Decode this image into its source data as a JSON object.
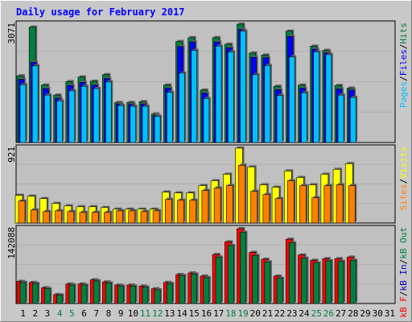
{
  "title": "Daily usage for February 2017",
  "colors": {
    "background": "#c8c8c8",
    "panel": "#c0c0c0",
    "grid": "#b0b0b0",
    "title": "#0000ff",
    "weekday_label": "#000000",
    "weekend_label": "#008040",
    "hits": "#008040",
    "files": "#0000ff",
    "pages": "#00c0ff",
    "visits": "#ffff00",
    "sites": "#ff8000",
    "kb_in": "#0000c0",
    "kb_out": "#008040",
    "kb_f": "#ff0000",
    "shadow": "#606060"
  },
  "chart_data": [
    {
      "type": "bar",
      "name": "pages-files-hits",
      "y_max_label": "3071",
      "ylim": [
        0,
        3071
      ],
      "legend": [
        "Pages",
        "/",
        "Files",
        "/",
        "Hits"
      ],
      "legend_colors": [
        "#00c0ff",
        "#000000",
        "#0000ff",
        "#000000",
        "#008040"
      ],
      "categories": [
        "1",
        "2",
        "3",
        "4",
        "5",
        "6",
        "7",
        "8",
        "9",
        "10",
        "11",
        "12",
        "13",
        "14",
        "15",
        "16",
        "17",
        "18",
        "19",
        "20",
        "21",
        "22",
        "23",
        "24",
        "25",
        "26",
        "27",
        "28",
        "29",
        "30",
        "31"
      ],
      "series": [
        {
          "name": "Hits",
          "color": "#008040",
          "values": [
            1730,
            2995,
            1490,
            1230,
            1580,
            1700,
            1590,
            1760,
            1040,
            1040,
            1060,
            740,
            1490,
            2620,
            2720,
            1360,
            2720,
            2550,
            3071,
            2320,
            2270,
            1460,
            2890,
            1490,
            2500,
            2390,
            1480,
            1410,
            null,
            null,
            null
          ]
        },
        {
          "name": "Files",
          "color": "#0000ff",
          "values": [
            1640,
            2080,
            1400,
            1150,
            1480,
            1560,
            1490,
            1660,
            1000,
            990,
            1000,
            700,
            1410,
            2490,
            2610,
            1280,
            2610,
            2460,
            2940,
            2210,
            2200,
            1370,
            2750,
            1410,
            2420,
            2330,
            1390,
            1360,
            null,
            null,
            null
          ]
        },
        {
          "name": "Pages",
          "color": "#00c0ff",
          "values": [
            1500,
            1990,
            1230,
            1080,
            1340,
            1460,
            1400,
            1570,
            960,
            940,
            940,
            680,
            1300,
            1800,
            2390,
            1140,
            2500,
            2350,
            2890,
            1760,
            2000,
            1220,
            2220,
            1290,
            2350,
            2280,
            1230,
            1170,
            null,
            null,
            null
          ]
        }
      ]
    },
    {
      "type": "bar",
      "name": "visits-sites",
      "y_max_label": "921",
      "ylim": [
        0,
        921
      ],
      "legend": [
        "Sites",
        "/",
        "Visits"
      ],
      "legend_colors": [
        "#ff8000",
        "#000000",
        "#ffff00"
      ],
      "categories": [
        "1",
        "2",
        "3",
        "4",
        "5",
        "6",
        "7",
        "8",
        "9",
        "10",
        "11",
        "12",
        "13",
        "14",
        "15",
        "16",
        "17",
        "18",
        "19",
        "20",
        "21",
        "22",
        "23",
        "24",
        "25",
        "26",
        "27",
        "28",
        "29",
        "30",
        "31"
      ],
      "series": [
        {
          "name": "Visits",
          "color": "#ffff00",
          "values": [
            340,
            330,
            300,
            240,
            210,
            200,
            200,
            190,
            170,
            170,
            170,
            170,
            380,
            370,
            370,
            460,
            520,
            600,
            921,
            690,
            470,
            440,
            640,
            560,
            470,
            600,
            660,
            730,
            null,
            null,
            null
          ]
        },
        {
          "name": "Sites",
          "color": "#ff8000",
          "values": [
            270,
            160,
            140,
            150,
            140,
            130,
            130,
            130,
            150,
            150,
            140,
            150,
            290,
            280,
            280,
            400,
            430,
            460,
            710,
            390,
            350,
            300,
            520,
            460,
            310,
            460,
            470,
            460,
            null,
            null,
            null
          ]
        }
      ]
    },
    {
      "type": "bar",
      "name": "kbytes",
      "y_max_label": "142088",
      "ylim": [
        0,
        142088
      ],
      "legend": [
        "kB F",
        "/",
        "kB In",
        "/",
        "kB Out"
      ],
      "legend_colors": [
        "#ff0000",
        "#000000",
        "#0000c0",
        "#000000",
        "#008040"
      ],
      "categories": [
        "1",
        "2",
        "3",
        "4",
        "5",
        "6",
        "7",
        "8",
        "9",
        "10",
        "11",
        "12",
        "13",
        "14",
        "15",
        "16",
        "17",
        "18",
        "19",
        "20",
        "21",
        "22",
        "23",
        "24",
        "25",
        "26",
        "27",
        "28",
        "29",
        "30",
        "31"
      ],
      "series": [
        {
          "name": "kB F",
          "color": "#ff0000",
          "values": [
            42000,
            40000,
            30000,
            17000,
            37000,
            37000,
            45000,
            41000,
            35000,
            35000,
            33000,
            28000,
            40000,
            55000,
            58000,
            52000,
            93000,
            117000,
            142088,
            97000,
            84000,
            52000,
            122000,
            92000,
            82000,
            85000,
            85000,
            88000,
            null,
            null,
            null
          ]
        },
        {
          "name": "kB In",
          "color": "#0000c0",
          "values": [
            0,
            0,
            0,
            0,
            0,
            0,
            0,
            0,
            0,
            0,
            0,
            0,
            0,
            0,
            0,
            0,
            0,
            0,
            0,
            0,
            0,
            0,
            0,
            0,
            0,
            0,
            0,
            0,
            null,
            null,
            null
          ]
        },
        {
          "name": "kB Out",
          "color": "#008040",
          "values": [
            40000,
            38000,
            28000,
            16000,
            35000,
            35000,
            43000,
            39000,
            33000,
            33000,
            31000,
            26000,
            38000,
            53000,
            56000,
            49000,
            88000,
            110000,
            135000,
            91000,
            79000,
            48000,
            115000,
            86000,
            77000,
            81000,
            80000,
            82000,
            null,
            null,
            null
          ]
        }
      ]
    }
  ],
  "x_axis": {
    "labels": [
      "1",
      "2",
      "3",
      "4",
      "5",
      "6",
      "7",
      "8",
      "9",
      "10",
      "11",
      "12",
      "13",
      "14",
      "15",
      "16",
      "17",
      "18",
      "19",
      "20",
      "21",
      "22",
      "23",
      "24",
      "25",
      "26",
      "27",
      "28",
      "29",
      "30",
      "31"
    ],
    "weekend": [
      false,
      false,
      false,
      true,
      true,
      false,
      false,
      false,
      false,
      false,
      true,
      true,
      false,
      false,
      false,
      false,
      false,
      true,
      true,
      false,
      false,
      false,
      false,
      false,
      true,
      true,
      false,
      false,
      false,
      false,
      false
    ]
  }
}
